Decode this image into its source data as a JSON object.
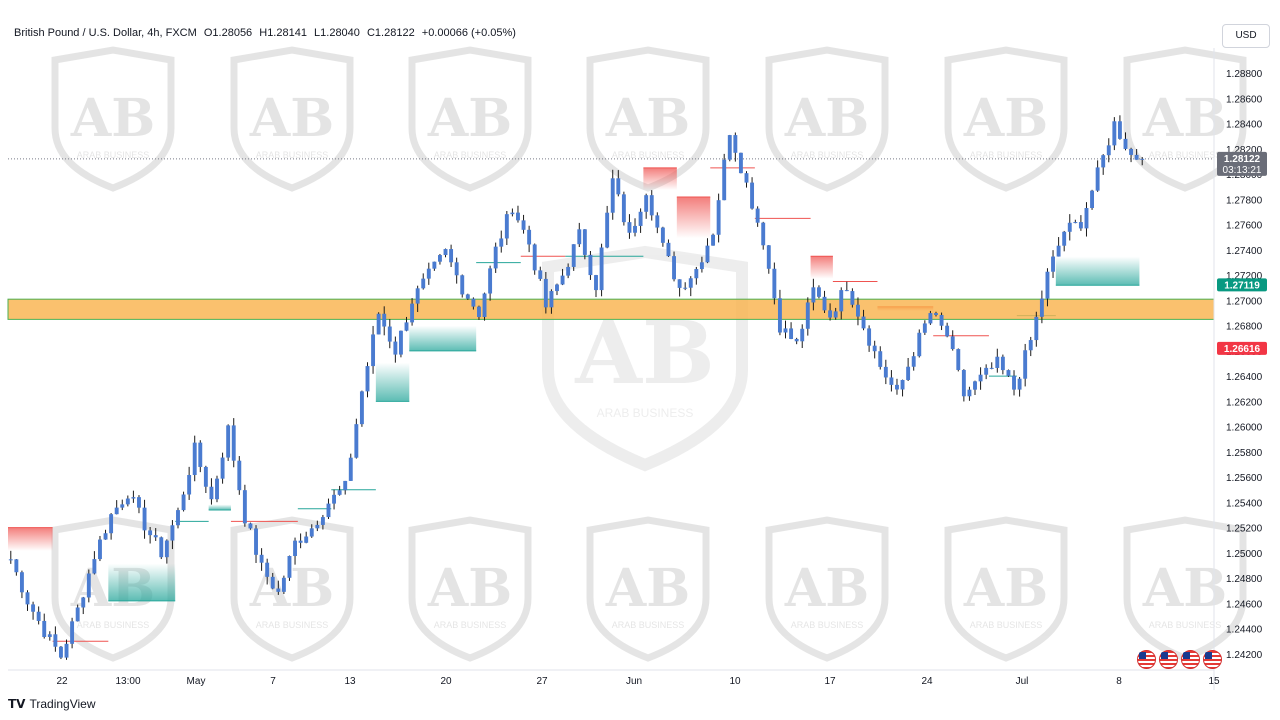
{
  "header": {
    "symbol": "British Pound / U.S. Dollar, 4h, FXCM",
    "open": "O1.28056",
    "high": "H1.28141",
    "low": "L1.28040",
    "close": "C1.28122",
    "change": "+0.00066 (+0.05%)",
    "currency": "USD"
  },
  "price_labels": {
    "last_price": "1.28122",
    "countdown": "03:13:21",
    "support_value": "1.27119",
    "resistance_value": "1.26616"
  },
  "colors": {
    "candle": "#4a7bd0",
    "wick": "#1a1a1a",
    "bull_zone": "#26a69a",
    "bear_zone": "#ef5350",
    "band": "#f9b24a",
    "support_label": "#089981",
    "resistance_label": "#f23645"
  },
  "watermark": {
    "initials": "AB",
    "name": "ARAB BUSINESS"
  },
  "branding": {
    "logo_text": "TradingView"
  },
  "chart_data": {
    "type": "candlestick",
    "title": "British Pound / U.S. Dollar, 4h, FXCM",
    "y_ticks": [
      "1.28800",
      "1.28600",
      "1.28400",
      "1.28200",
      "1.28000",
      "1.27800",
      "1.27600",
      "1.27400",
      "1.27200",
      "1.27000",
      "1.26800",
      "1.26600",
      "1.26400",
      "1.26200",
      "1.26000",
      "1.25800",
      "1.25600",
      "1.25400",
      "1.25200",
      "1.25000",
      "1.24800",
      "1.24600",
      "1.24400",
      "1.24200"
    ],
    "ylim": [
      1.2408,
      1.29
    ],
    "x_ticks": [
      "22",
      "13:00",
      "May",
      "7",
      "13",
      "20",
      "27",
      "Jun",
      "10",
      "17",
      "24",
      "Jul",
      "8",
      "15"
    ],
    "horizontal_zone": {
      "low": 1.2685,
      "high": 1.2701
    },
    "last_price": 1.28122,
    "price_path": [
      [
        0,
        1.2495
      ],
      [
        3,
        1.2462
      ],
      [
        6,
        1.2438
      ],
      [
        9,
        1.2418
      ],
      [
        12,
        1.2455
      ],
      [
        15,
        1.2498
      ],
      [
        18,
        1.253
      ],
      [
        21,
        1.2548
      ],
      [
        24,
        1.2522
      ],
      [
        27,
        1.25
      ],
      [
        30,
        1.2532
      ],
      [
        33,
        1.2582
      ],
      [
        36,
        1.2542
      ],
      [
        39,
        1.2598
      ],
      [
        42,
        1.2528
      ],
      [
        45,
        1.2488
      ],
      [
        48,
        1.2468
      ],
      [
        51,
        1.2508
      ],
      [
        54,
        1.252
      ],
      [
        57,
        1.254
      ],
      [
        60,
        1.2552
      ],
      [
        63,
        1.2628
      ],
      [
        66,
        1.269
      ],
      [
        69,
        1.266
      ],
      [
        72,
        1.27
      ],
      [
        75,
        1.272
      ],
      [
        78,
        1.2738
      ],
      [
        81,
        1.271
      ],
      [
        84,
        1.269
      ],
      [
        87,
        1.274
      ],
      [
        90,
        1.2775
      ],
      [
        93,
        1.2745
      ],
      [
        96,
        1.2695
      ],
      [
        99,
        1.272
      ],
      [
        102,
        1.2752
      ],
      [
        105,
        1.2712
      ],
      [
        108,
        1.2795
      ],
      [
        111,
        1.275
      ],
      [
        114,
        1.2788
      ],
      [
        117,
        1.2742
      ],
      [
        120,
        1.271
      ],
      [
        123,
        1.2725
      ],
      [
        126,
        1.2755
      ],
      [
        129,
        1.2835
      ],
      [
        132,
        1.2792
      ],
      [
        135,
        1.2748
      ],
      [
        138,
        1.268
      ],
      [
        141,
        1.2665
      ],
      [
        144,
        1.2708
      ],
      [
        147,
        1.2688
      ],
      [
        150,
        1.2712
      ],
      [
        153,
        1.268
      ],
      [
        156,
        1.2648
      ],
      [
        159,
        1.2625
      ],
      [
        162,
        1.266
      ],
      [
        165,
        1.269
      ],
      [
        168,
        1.2672
      ],
      [
        171,
        1.2625
      ],
      [
        174,
        1.2638
      ],
      [
        177,
        1.265
      ],
      [
        180,
        1.263
      ],
      [
        183,
        1.2668
      ],
      [
        186,
        1.272
      ],
      [
        189,
        1.2755
      ],
      [
        192,
        1.2762
      ],
      [
        195,
        1.28
      ],
      [
        198,
        1.284
      ],
      [
        201,
        1.2815
      ],
      [
        203,
        1.2812
      ]
    ],
    "trailing_stop": [
      {
        "from": 0,
        "to": 8,
        "value": 1.252,
        "side": "resistance"
      },
      {
        "from": 8,
        "to": 18,
        "value": 1.243,
        "side": "resistance"
      },
      {
        "from": 18,
        "to": 30,
        "value": 1.2462,
        "side": "support"
      },
      {
        "from": 30,
        "to": 36,
        "value": 1.2525,
        "side": "support"
      },
      {
        "from": 36,
        "to": 40,
        "value": 1.2534,
        "side": "support"
      },
      {
        "from": 40,
        "to": 52,
        "value": 1.2525,
        "side": "resistance"
      },
      {
        "from": 52,
        "to": 58,
        "value": 1.2535,
        "side": "support"
      },
      {
        "from": 58,
        "to": 66,
        "value": 1.255,
        "side": "support"
      },
      {
        "from": 66,
        "to": 72,
        "value": 1.262,
        "side": "support"
      },
      {
        "from": 72,
        "to": 84,
        "value": 1.266,
        "side": "support"
      },
      {
        "from": 84,
        "to": 92,
        "value": 1.273,
        "side": "support"
      },
      {
        "from": 92,
        "to": 100,
        "value": 1.2735,
        "side": "resistance"
      },
      {
        "from": 100,
        "to": 114,
        "value": 1.2735,
        "side": "support"
      },
      {
        "from": 114,
        "to": 120,
        "value": 1.2805,
        "side": "resistance"
      },
      {
        "from": 120,
        "to": 126,
        "value": 1.2782,
        "side": "resistance"
      },
      {
        "from": 126,
        "to": 134,
        "value": 1.2805,
        "side": "resistance"
      },
      {
        "from": 134,
        "to": 144,
        "value": 1.2765,
        "side": "resistance"
      },
      {
        "from": 144,
        "to": 148,
        "value": 1.2735,
        "side": "resistance"
      },
      {
        "from": 148,
        "to": 156,
        "value": 1.2715,
        "side": "resistance"
      },
      {
        "from": 156,
        "to": 166,
        "value": 1.2695,
        "side": "resistance"
      },
      {
        "from": 166,
        "to": 176,
        "value": 1.2672,
        "side": "resistance"
      },
      {
        "from": 176,
        "to": 181,
        "value": 1.264,
        "side": "support"
      },
      {
        "from": 181,
        "to": 188,
        "value": 1.2688,
        "side": "support"
      },
      {
        "from": 188,
        "to": 203,
        "value": 1.2712,
        "side": "support"
      }
    ]
  }
}
